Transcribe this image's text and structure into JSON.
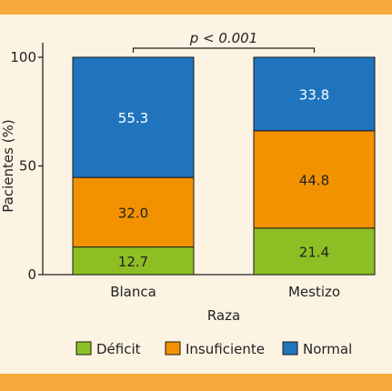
{
  "chart_data": {
    "type": "bar",
    "stacked": true,
    "categories": [
      "Blanca",
      "Mestizo"
    ],
    "series": [
      {
        "name": "Déficit",
        "values": [
          12.7,
          21.4
        ],
        "labels": [
          "12.7",
          "21.4"
        ],
        "color": "#8dbf25"
      },
      {
        "name": "Insuficiente",
        "values": [
          32.0,
          44.8
        ],
        "labels": [
          "32.0",
          "44.8"
        ],
        "color": "#f39200"
      },
      {
        "name": "Normal",
        "values": [
          55.3,
          33.8
        ],
        "labels": [
          "55.3",
          "33.8"
        ],
        "color": "#1f74bd"
      }
    ],
    "xlabel": "Raza",
    "ylabel": "Pacientes (%)",
    "ylim": [
      0,
      100
    ],
    "yticks": [
      "0",
      "50",
      "100"
    ],
    "annotation": "p < 0.001",
    "legend_position": "bottom",
    "grid": false
  },
  "colors": {
    "background": "#fdf3e3",
    "band": "#f5a93a"
  }
}
